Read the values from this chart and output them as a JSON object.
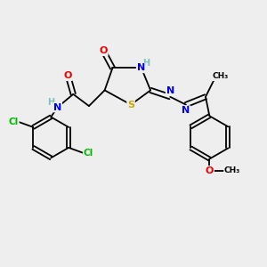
{
  "bg_color": "#eeeeee",
  "atom_colors": {
    "C": "#000000",
    "H": "#7fbfbf",
    "N": "#0000ee",
    "O": "#ee0000",
    "S": "#ccaa00",
    "Cl": "#00bb00"
  },
  "figsize": [
    3.0,
    3.0
  ],
  "dpi": 100
}
